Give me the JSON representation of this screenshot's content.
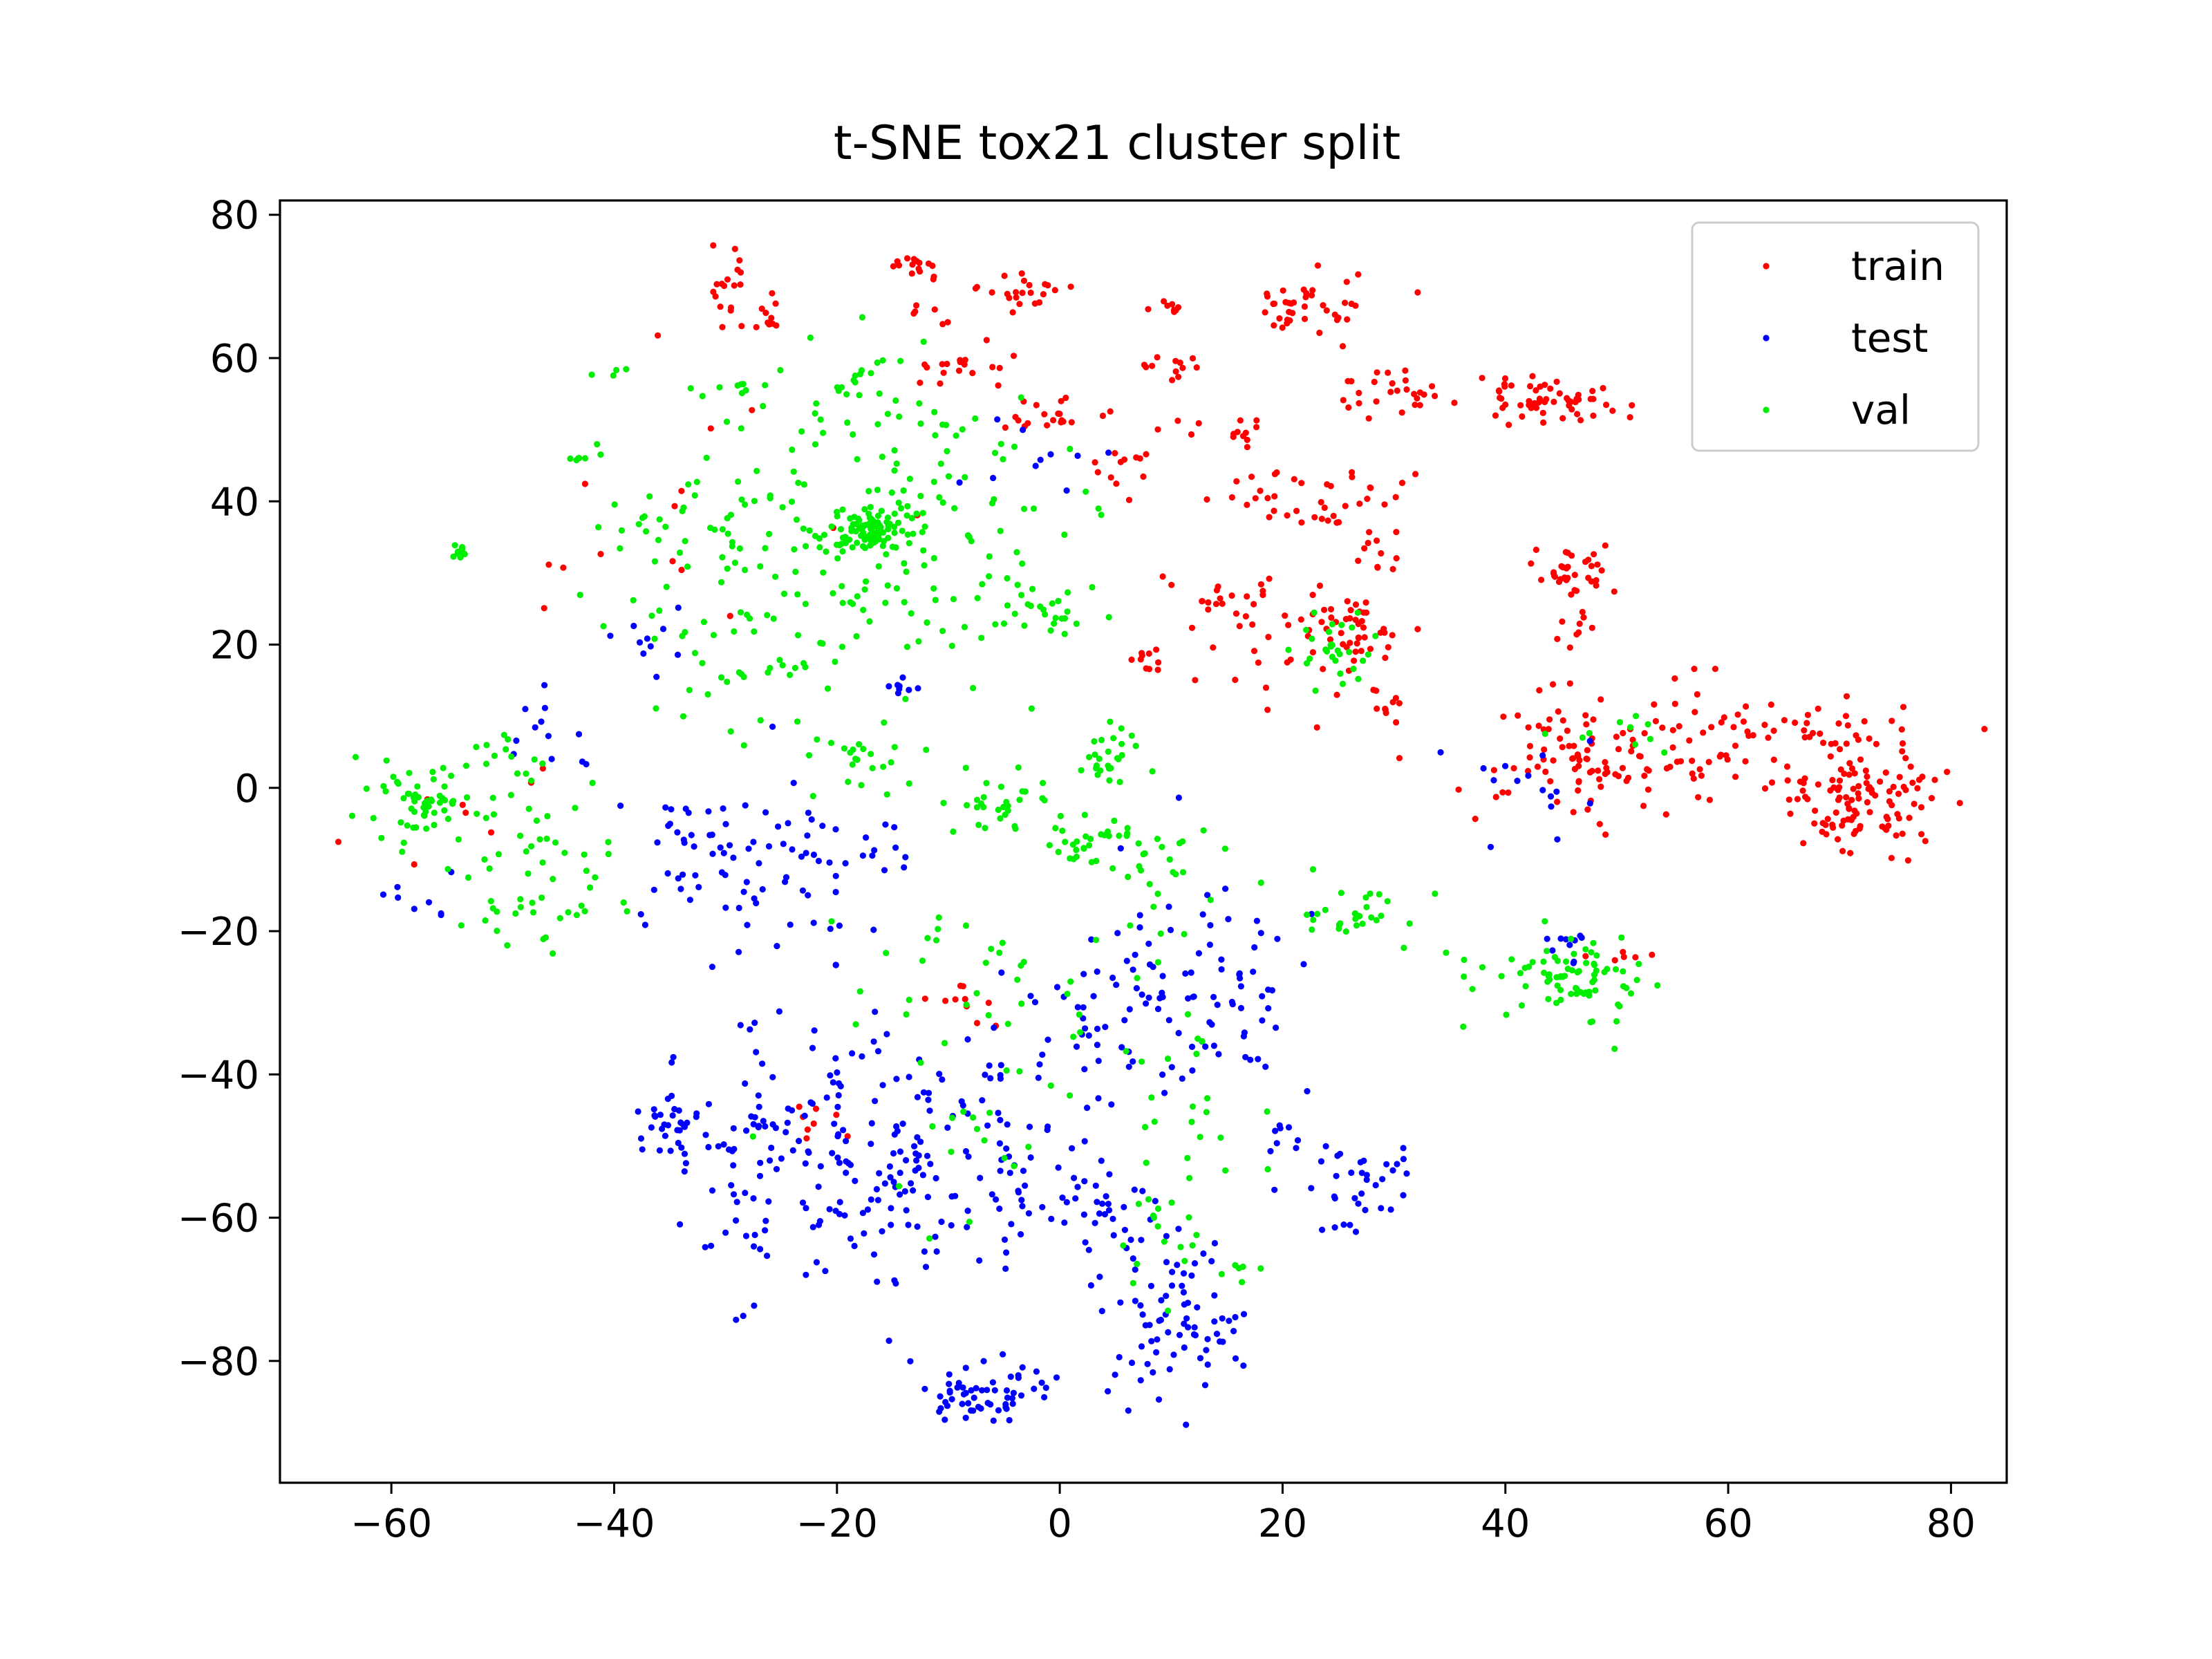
{
  "chart_data": {
    "type": "scatter",
    "title": "t-SNE tox21 cluster split",
    "xlabel": "",
    "ylabel": "",
    "xlim": [
      -70,
      85
    ],
    "ylim": [
      -97,
      82
    ],
    "x_ticks": [
      -60,
      -40,
      -20,
      0,
      20,
      40,
      60,
      80
    ],
    "y_ticks": [
      -80,
      -60,
      -40,
      -20,
      0,
      20,
      40,
      60,
      80
    ],
    "x_tick_labels": [
      "−60",
      "−40",
      "−20",
      "0",
      "20",
      "40",
      "60",
      "80"
    ],
    "y_tick_labels": [
      "−80",
      "−60",
      "−40",
      "−20",
      "0",
      "20",
      "40",
      "60",
      "80"
    ],
    "grid": false,
    "legend_position": "top-right",
    "series": [
      {
        "name": "train",
        "color": "#ff0000",
        "clusters": [
          {
            "cx": -30,
            "cy": 70,
            "sx": 1.5,
            "sy": 3,
            "n": 20
          },
          {
            "cx": -26,
            "cy": 66,
            "sx": 0.8,
            "sy": 1.2,
            "n": 8
          },
          {
            "cx": -13,
            "cy": 73,
            "sx": 1.5,
            "sy": 0.8,
            "n": 15
          },
          {
            "cx": -12,
            "cy": 67,
            "sx": 1,
            "sy": 1,
            "n": 6
          },
          {
            "cx": -3,
            "cy": 69,
            "sx": 2,
            "sy": 1.5,
            "n": 22
          },
          {
            "cx": -9,
            "cy": 59,
            "sx": 2.5,
            "sy": 1.5,
            "n": 18
          },
          {
            "cx": -1,
            "cy": 52,
            "sx": 2.5,
            "sy": 1.5,
            "n": 20
          },
          {
            "cx": 10,
            "cy": 67,
            "sx": 1,
            "sy": 0.6,
            "n": 8
          },
          {
            "cx": 10,
            "cy": 59,
            "sx": 1.5,
            "sy": 1,
            "n": 12
          },
          {
            "cx": 22,
            "cy": 67,
            "sx": 3,
            "sy": 2,
            "n": 40
          },
          {
            "cx": 17,
            "cy": 50,
            "sx": 1,
            "sy": 1.5,
            "n": 10
          },
          {
            "cx": 30,
            "cy": 56,
            "sx": 3,
            "sy": 2,
            "n": 25
          },
          {
            "cx": 44,
            "cy": 54,
            "sx": 3.5,
            "sy": 2,
            "n": 60
          },
          {
            "cx": 6,
            "cy": 45,
            "sx": 1.5,
            "sy": 2,
            "n": 12
          },
          {
            "cx": 23,
            "cy": 40,
            "sx": 4,
            "sy": 2.5,
            "n": 40
          },
          {
            "cx": 29,
            "cy": 33,
            "sx": 1,
            "sy": 2,
            "n": 10
          },
          {
            "cx": 46,
            "cy": 30,
            "sx": 1.5,
            "sy": 2,
            "n": 35
          },
          {
            "cx": 46,
            "cy": 22,
            "sx": 1,
            "sy": 1.5,
            "n": 8
          },
          {
            "cx": 15,
            "cy": 26,
            "sx": 3,
            "sy": 1.5,
            "n": 20
          },
          {
            "cx": 26,
            "cy": 22,
            "sx": 3,
            "sy": 2.5,
            "n": 45
          },
          {
            "cx": 29,
            "cy": 12,
            "sx": 1,
            "sy": 1.5,
            "n": 10
          },
          {
            "cx": 8,
            "cy": 18,
            "sx": 1,
            "sy": 0.8,
            "n": 10
          },
          {
            "cx": 18,
            "cy": 18,
            "sx": 4,
            "sy": 4,
            "n": 20
          },
          {
            "cx": 52,
            "cy": 5,
            "sx": 8,
            "sy": 5,
            "n": 110
          },
          {
            "cx": 68,
            "cy": 8,
            "sx": 5,
            "sy": 2.5,
            "n": 40
          },
          {
            "cx": 72,
            "cy": -2,
            "sx": 4,
            "sy": 3.5,
            "n": 110
          },
          {
            "cx": 45,
            "cy": 6,
            "sx": 3,
            "sy": 5,
            "n": 20
          },
          {
            "cx": 51,
            "cy": -23,
            "sx": 2,
            "sy": 1,
            "n": 6
          },
          {
            "cx": -8,
            "cy": -30,
            "sx": 2,
            "sy": 2,
            "n": 10
          },
          {
            "cx": -23,
            "cy": -46,
            "sx": 2,
            "sy": 2,
            "n": 8
          },
          {
            "cx": -55,
            "cy": -2,
            "sx": 5,
            "sy": 5,
            "n": 8
          },
          {
            "cx": -30,
            "cy": 40,
            "sx": 10,
            "sy": 12,
            "n": 15
          },
          {
            "cx": 10,
            "cy": 50,
            "sx": 2,
            "sy": 1,
            "n": 4
          }
        ]
      },
      {
        "name": "test",
        "color": "#0000ff",
        "clusters": [
          {
            "cx": -35,
            "cy": -48,
            "sx": 2,
            "sy": 3,
            "n": 30
          },
          {
            "cx": -27,
            "cy": -52,
            "sx": 4,
            "sy": 9,
            "n": 90
          },
          {
            "cx": -14,
            "cy": -52,
            "sx": 5,
            "sy": 10,
            "n": 120
          },
          {
            "cx": -4,
            "cy": -50,
            "sx": 3,
            "sy": 8,
            "n": 40
          },
          {
            "cx": -7,
            "cy": -85,
            "sx": 3,
            "sy": 2,
            "n": 60
          },
          {
            "cx": 11,
            "cy": -75,
            "sx": 3,
            "sy": 6,
            "n": 70
          },
          {
            "cx": 5,
            "cy": -60,
            "sx": 4,
            "sy": 5,
            "n": 40
          },
          {
            "cx": 28,
            "cy": -55,
            "sx": 2.5,
            "sy": 3,
            "n": 35
          },
          {
            "cx": 12,
            "cy": -30,
            "sx": 4,
            "sy": 7,
            "n": 80
          },
          {
            "cx": 3,
            "cy": -30,
            "sx": 3,
            "sy": 5,
            "n": 30
          },
          {
            "cx": -32,
            "cy": -8,
            "sx": 3,
            "sy": 5,
            "n": 40
          },
          {
            "cx": -24,
            "cy": -10,
            "sx": 3,
            "sy": 8,
            "n": 40
          },
          {
            "cx": -16,
            "cy": -8,
            "sx": 2,
            "sy": 2,
            "n": 10
          },
          {
            "cx": -46,
            "cy": 8,
            "sx": 2,
            "sy": 3,
            "n": 12
          },
          {
            "cx": -36,
            "cy": 20,
            "sx": 2,
            "sy": 3,
            "n": 10
          },
          {
            "cx": -15,
            "cy": 14,
            "sx": 1,
            "sy": 1,
            "n": 8
          },
          {
            "cx": 45,
            "cy": -22,
            "sx": 1.5,
            "sy": 2,
            "n": 10
          },
          {
            "cx": 43,
            "cy": 0,
            "sx": 3,
            "sy": 5,
            "n": 15
          },
          {
            "cx": 20,
            "cy": -48,
            "sx": 1,
            "sy": 2,
            "n": 8
          },
          {
            "cx": -5,
            "cy": 45,
            "sx": 4,
            "sy": 4,
            "n": 10
          },
          {
            "cx": -55,
            "cy": -15,
            "sx": 3,
            "sy": 3,
            "n": 8
          }
        ]
      },
      {
        "name": "val",
        "color": "#00ee00",
        "clusters": [
          {
            "cx": -17,
            "cy": 36,
            "sx": 1.5,
            "sy": 1.5,
            "n": 80
          },
          {
            "cx": -18,
            "cy": 36,
            "sx": 9,
            "sy": 12,
            "n": 220
          },
          {
            "cx": -54,
            "cy": 33,
            "sx": 0.5,
            "sy": 0.5,
            "n": 15
          },
          {
            "cx": -57,
            "cy": -2,
            "sx": 3,
            "sy": 3,
            "n": 60
          },
          {
            "cx": -46,
            "cy": -8,
            "sx": 4,
            "sy": 5,
            "n": 35
          },
          {
            "cx": -47,
            "cy": -18,
            "sx": 3,
            "sy": 2,
            "n": 20
          },
          {
            "cx": -18,
            "cy": 58,
            "sx": 1,
            "sy": 1.2,
            "n": 10
          },
          {
            "cx": -28,
            "cy": 56,
            "sx": 1,
            "sy": 0.6,
            "n": 6
          },
          {
            "cx": -40,
            "cy": 58,
            "sx": 1,
            "sy": 0.5,
            "n": 4
          },
          {
            "cx": -44,
            "cy": 46,
            "sx": 1,
            "sy": 0.5,
            "n": 5
          },
          {
            "cx": -38,
            "cy": 38,
            "sx": 3,
            "sy": 3,
            "n": 15
          },
          {
            "cx": -2,
            "cy": 24,
            "sx": 3,
            "sy": 2,
            "n": 25
          },
          {
            "cx": -18,
            "cy": 4,
            "sx": 3,
            "sy": 2,
            "n": 20
          },
          {
            "cx": -5,
            "cy": -3,
            "sx": 3,
            "sy": 3,
            "n": 30
          },
          {
            "cx": 4,
            "cy": -8,
            "sx": 4,
            "sy": 2,
            "n": 40
          },
          {
            "cx": 4,
            "cy": 4,
            "sx": 2,
            "sy": 2,
            "n": 25
          },
          {
            "cx": 26,
            "cy": -18,
            "sx": 3,
            "sy": 2,
            "n": 30
          },
          {
            "cx": 25,
            "cy": 20,
            "sx": 2,
            "sy": 2.5,
            "n": 30
          },
          {
            "cx": 46,
            "cy": -27,
            "sx": 3.5,
            "sy": 3,
            "n": 80
          },
          {
            "cx": 50,
            "cy": 8,
            "sx": 3,
            "sy": 2,
            "n": 10
          },
          {
            "cx": -8,
            "cy": -28,
            "sx": 6,
            "sy": 4,
            "n": 30
          },
          {
            "cx": 12,
            "cy": -42,
            "sx": 4,
            "sy": 6,
            "n": 20
          },
          {
            "cx": 10,
            "cy": -60,
            "sx": 3,
            "sy": 5,
            "n": 20
          },
          {
            "cx": -10,
            "cy": -50,
            "sx": 6,
            "sy": 6,
            "n": 20
          },
          {
            "cx": -30,
            "cy": 20,
            "sx": 6,
            "sy": 5,
            "n": 25
          },
          {
            "cx": -50,
            "cy": 5,
            "sx": 3,
            "sy": 3,
            "n": 10
          },
          {
            "cx": 16,
            "cy": -68,
            "sx": 1,
            "sy": 1,
            "n": 6
          },
          {
            "cx": 10,
            "cy": -15,
            "sx": 3,
            "sy": 5,
            "n": 15
          }
        ]
      }
    ]
  }
}
